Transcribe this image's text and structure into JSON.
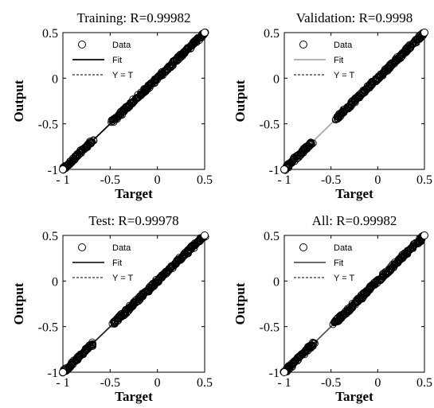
{
  "chart_data": [
    {
      "type": "scatter",
      "title": "Training: R=0.99982",
      "xlabel": "Target",
      "ylabel": "Output",
      "xlim": [
        -1,
        0.5
      ],
      "ylim": [
        -1,
        0.5
      ],
      "xticks": [
        "- 1",
        "-0.5",
        "0",
        "0.5"
      ],
      "yticks": [
        "-1",
        "-0.5",
        "0",
        "0.5"
      ],
      "grid": false,
      "legend_position": "top-left",
      "legend": [
        "Data",
        "Fit",
        "Y = T"
      ],
      "fit_color": "#000000",
      "fit": {
        "slope": 1.0,
        "intercept": 0.0
      },
      "data_ranges": [
        [
          -1.0,
          -0.68
        ],
        [
          -0.48,
          0.5
        ]
      ]
    },
    {
      "type": "scatter",
      "title": "Validation: R=0.9998",
      "xlabel": "Target",
      "ylabel": "Output",
      "xlim": [
        -1,
        0.5
      ],
      "ylim": [
        -1,
        0.5
      ],
      "xticks": [
        "- 1",
        "-0.5",
        "0",
        "0.5"
      ],
      "yticks": [
        "-1",
        "-0.5",
        "0",
        "0.5"
      ],
      "grid": false,
      "legend_position": "top-left",
      "legend": [
        "Data",
        "Fit",
        "Y = T"
      ],
      "fit_color": "#aaaaaa",
      "fit": {
        "slope": 1.0,
        "intercept": 0.0
      },
      "data_ranges": [
        [
          -1.0,
          -0.7
        ],
        [
          -0.45,
          0.5
        ]
      ]
    },
    {
      "type": "scatter",
      "title": "Test: R=0.99978",
      "xlabel": "Target",
      "ylabel": "Output",
      "xlim": [
        -1,
        0.5
      ],
      "ylim": [
        -1,
        0.5
      ],
      "xticks": [
        "- 1",
        "-0.5",
        "0",
        "0.5"
      ],
      "yticks": [
        "-1",
        "-0.5",
        "0",
        "0.5"
      ],
      "grid": false,
      "legend_position": "top-left",
      "legend": [
        "Data",
        "Fit",
        "Y = T"
      ],
      "fit_color": "#222222",
      "fit": {
        "slope": 1.0,
        "intercept": 0.0
      },
      "data_ranges": [
        [
          -1.0,
          -0.68
        ],
        [
          -0.47,
          0.5
        ]
      ]
    },
    {
      "type": "scatter",
      "title": "All: R=0.99982",
      "xlabel": "Target",
      "ylabel": "Output",
      "xlim": [
        -1,
        0.5
      ],
      "ylim": [
        -1,
        0.5
      ],
      "xticks": [
        "- 1",
        "-0.5",
        "0",
        "0.5"
      ],
      "yticks": [
        "-1",
        "-0.5",
        "0",
        "0.5"
      ],
      "grid": false,
      "legend_position": "top-left",
      "legend": [
        "Data",
        "Fit",
        "Y = T"
      ],
      "fit_color": "#555555",
      "fit": {
        "slope": 1.0,
        "intercept": 0.0
      },
      "data_ranges": [
        [
          -1.0,
          -0.68
        ],
        [
          -0.47,
          0.5
        ]
      ]
    }
  ]
}
